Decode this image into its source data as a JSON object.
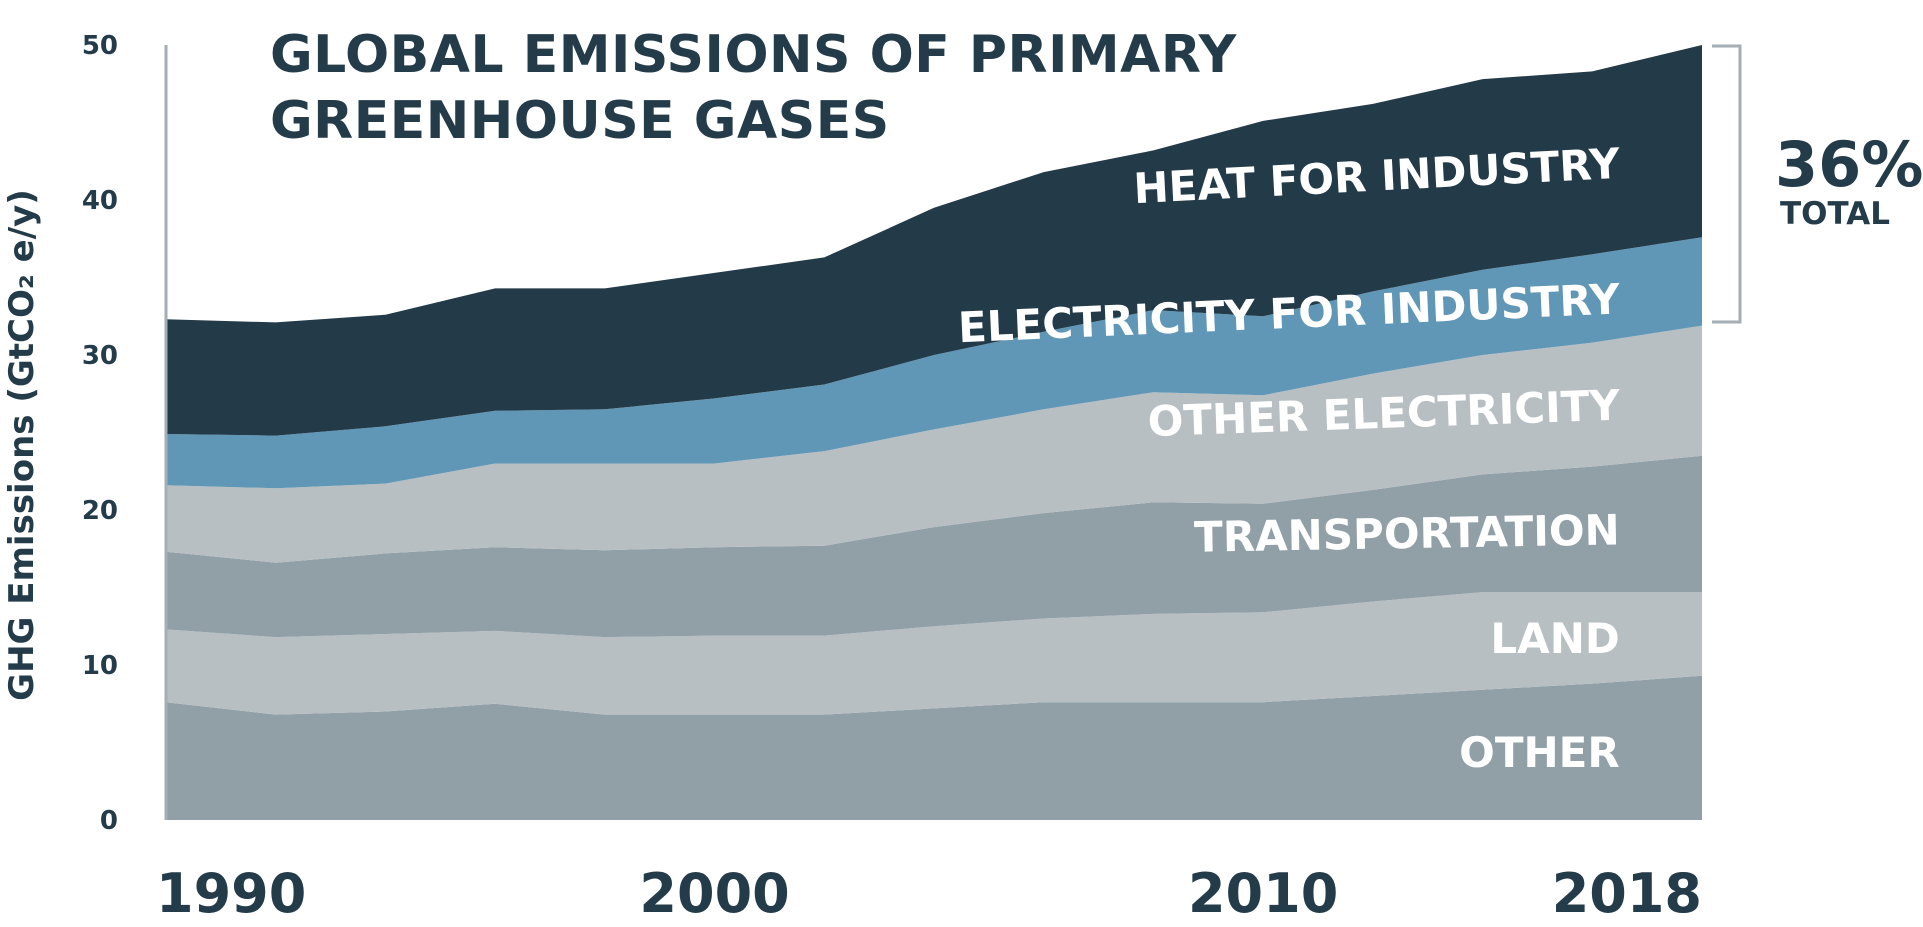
{
  "chart_data": {
    "type": "area",
    "stacked": true,
    "title": "GLOBAL EMISSIONS OF PRIMARY GREENHOUSE GASES",
    "ylabel": "GHG Emissions (GtCO₂ e/y)",
    "xlabel": "",
    "ylim": [
      0,
      50
    ],
    "xlim": [
      1990,
      2018
    ],
    "yticks": [
      0,
      10,
      20,
      30,
      40,
      50
    ],
    "xticks": [
      "1990",
      "2000",
      "2010",
      "2018"
    ],
    "x": [
      1990,
      1992,
      1994,
      1996,
      1998,
      2000,
      2002,
      2004,
      2006,
      2008,
      2010,
      2012,
      2014,
      2016,
      2018
    ],
    "series": [
      {
        "name": "OTHER",
        "color": "#919fa7",
        "values": [
          7.6,
          6.8,
          7.0,
          7.5,
          6.8,
          6.8,
          6.8,
          7.2,
          7.6,
          7.6,
          7.6,
          8.0,
          8.4,
          8.8,
          9.3
        ]
      },
      {
        "name": "LAND",
        "color": "#b7bfc3",
        "values": [
          4.7,
          5.0,
          5.0,
          4.7,
          5.0,
          5.1,
          5.1,
          5.3,
          5.4,
          5.7,
          5.8,
          6.1,
          6.3,
          5.9,
          5.4
        ]
      },
      {
        "name": "TRANSPORTATION",
        "color": "#919fa7",
        "values": [
          5.0,
          4.8,
          5.2,
          5.4,
          5.6,
          5.7,
          5.8,
          6.4,
          6.8,
          7.2,
          7.0,
          7.2,
          7.6,
          8.1,
          8.8
        ]
      },
      {
        "name": "OTHER ELECTRICITY",
        "color": "#b7bfc3",
        "values": [
          4.3,
          4.8,
          4.5,
          5.4,
          5.6,
          5.4,
          6.1,
          6.3,
          6.7,
          7.1,
          7.0,
          7.5,
          7.7,
          8.0,
          8.4
        ]
      },
      {
        "name": "ELECTRICITY FOR INDUSTRY",
        "color": "#6197b6",
        "values": [
          3.3,
          3.4,
          3.7,
          3.4,
          3.5,
          4.2,
          4.3,
          4.8,
          5.0,
          5.3,
          5.1,
          5.3,
          5.5,
          5.7,
          5.7
        ]
      },
      {
        "name": "HEAT FOR INDUSTRY",
        "color": "#233a48",
        "values": [
          7.4,
          7.3,
          7.2,
          7.9,
          7.8,
          8.1,
          8.2,
          9.5,
          10.3,
          10.3,
          12.6,
          12.1,
          12.3,
          11.8,
          12.4
        ]
      }
    ],
    "annotation": {
      "value": "36%",
      "label": "TOTAL"
    }
  }
}
